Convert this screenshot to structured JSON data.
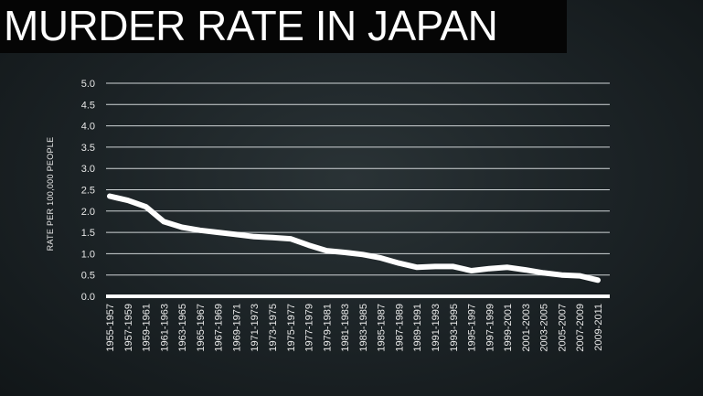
{
  "chart_data": {
    "type": "line",
    "title": "MURDER RATE IN JAPAN",
    "ylabel": "RATE PER 100,000 PEOPLE",
    "xlabel": "",
    "ylim": [
      0,
      5
    ],
    "yticks": [
      "0.0",
      "0.5",
      "1.0",
      "1.5",
      "2.0",
      "2.5",
      "3.0",
      "3.5",
      "4.0",
      "4.5",
      "5.0"
    ],
    "grid": true,
    "categories": [
      "1955-1957",
      "1957-1959",
      "1959-1961",
      "1961-1963",
      "1963-1965",
      "1965-1967",
      "1967-1969",
      "1969-1971",
      "1971-1973",
      "1973-1975",
      "1975-1977",
      "1977-1979",
      "1979-1981",
      "1981-1983",
      "1983-1985",
      "1985-1987",
      "1987-1989",
      "1989-1991",
      "1991-1993",
      "1993-1995",
      "1995-1997",
      "1997-1999",
      "1999-2001",
      "2001-2003",
      "2003-2005",
      "2005-2007",
      "2007-2009",
      "2009-2011"
    ],
    "series": [
      {
        "values": [
          2.35,
          2.25,
          2.1,
          1.75,
          1.62,
          1.55,
          1.5,
          1.45,
          1.4,
          1.38,
          1.35,
          1.2,
          1.07,
          1.03,
          0.98,
          0.9,
          0.78,
          0.68,
          0.7,
          0.7,
          0.6,
          0.65,
          0.68,
          0.62,
          0.55,
          0.5,
          0.48,
          0.38
        ],
        "color": "#ffffff"
      }
    ]
  }
}
